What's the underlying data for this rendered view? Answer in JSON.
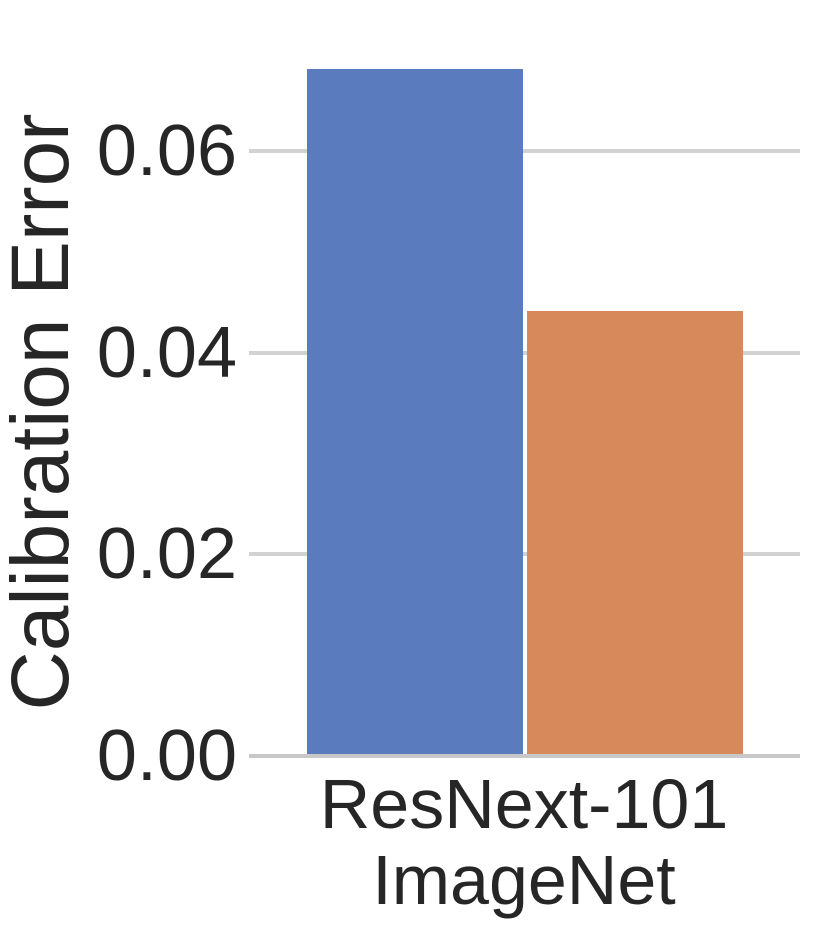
{
  "figure": {
    "ylabel": "Calibration Error",
    "xtick_lines": [
      "ResNext-101",
      "ImageNet"
    ]
  },
  "chart_data": {
    "type": "bar",
    "title": "",
    "xlabel": "",
    "ylabel": "Calibration Error",
    "categories": [
      "ResNext-101 ImageNet"
    ],
    "series": [
      {
        "name": "series-1",
        "color": "#5a7cbe",
        "values": [
          0.068
        ]
      },
      {
        "name": "series-2",
        "color": "#d8895c",
        "values": [
          0.044
        ]
      }
    ],
    "ylim": [
      0,
      0.075
    ],
    "yticks": [
      0,
      0.02,
      0.04,
      0.06
    ],
    "ytick_labels": [
      "0.00",
      "0.02",
      "0.04",
      "0.06"
    ],
    "grid": true,
    "legend": "none"
  },
  "colors": {
    "bar_blue": "#5a7cbe",
    "bar_orange": "#d8895c",
    "gridline": "#d2d2d2",
    "axis_line": "#c8c8c8",
    "text": "#262626",
    "background": "#ffffff"
  }
}
